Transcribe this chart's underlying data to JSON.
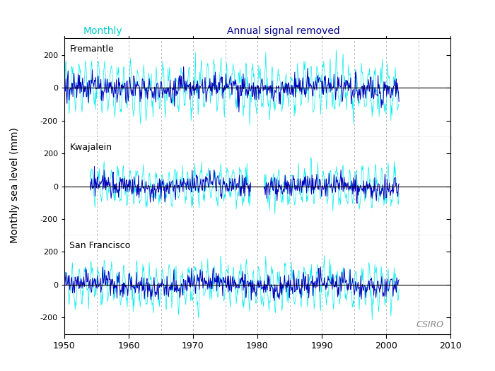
{
  "title": "",
  "ylabel": "Monthly sea level (mm)",
  "xlabel": "",
  "x_start": 1950,
  "x_end": 2010,
  "x_ticks": [
    1950,
    1960,
    1970,
    1980,
    1990,
    2000,
    2010
  ],
  "dashed_lines": [
    1955,
    1960,
    1965,
    1970,
    1975,
    1980,
    1985,
    1990,
    1995,
    2000,
    2005
  ],
  "stations": [
    "Fremantle",
    "Kwajalein",
    "San Francisco"
  ],
  "ylim": [
    -300,
    300
  ],
  "yticks": [
    -200,
    0,
    200
  ],
  "color_monthly": "#00EEEE",
  "color_annual_removed": "#0000BB",
  "color_zero_line": "#000000",
  "label_monthly": "Monthly",
  "label_annual": "Annual signal removed",
  "csiro_text": "CSIRO",
  "background_color": "#FFFFFF",
  "monthly_label_color": "#00CCCC",
  "annual_label_color": "#00008B",
  "dpi": 100,
  "fig_width": 7.0,
  "fig_height": 5.25
}
